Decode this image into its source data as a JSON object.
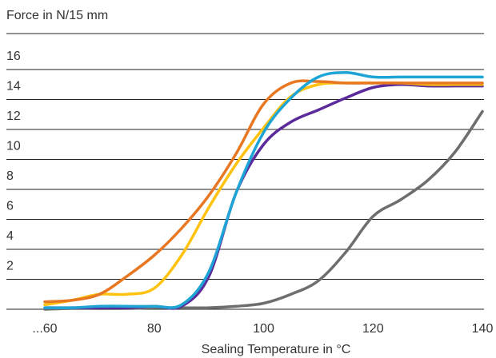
{
  "chart_data": {
    "type": "line",
    "y_label": "Force in N/15 mm",
    "x_label": "Sealing Temperature in °C",
    "x": [
      60,
      65,
      70,
      75,
      80,
      85,
      90,
      95,
      100,
      105,
      110,
      115,
      120,
      125,
      130,
      135,
      140
    ],
    "xlim": [
      60,
      140
    ],
    "xticks": [
      {
        "value": 60,
        "label": "...60"
      },
      80,
      100,
      120,
      140
    ],
    "ylim": [
      0,
      16
    ],
    "yticks": [
      2,
      4,
      6,
      8,
      10,
      12,
      14,
      16
    ],
    "grid": true,
    "series": [
      {
        "color": "#6d6e70",
        "values": [
          0,
          0.05,
          0.05,
          0.05,
          0.1,
          0.1,
          0.1,
          0.2,
          0.4,
          1.0,
          1.9,
          3.8,
          6.2,
          7.3,
          8.6,
          10.5,
          13.2
        ]
      },
      {
        "color": "#5b2a9b",
        "values": [
          0.1,
          0.1,
          0.1,
          0.1,
          0.2,
          0.2,
          2.2,
          7.8,
          11.0,
          12.5,
          13.3,
          14.1,
          14.8,
          15.0,
          14.9,
          14.9,
          14.9
        ]
      },
      {
        "color": "#ffc20e",
        "values": [
          0.3,
          0.6,
          1.0,
          1.0,
          1.4,
          3.6,
          6.8,
          9.7,
          12.1,
          14.2,
          15.0,
          15.1,
          15.1,
          15.1,
          15.0,
          15.0,
          15.0
        ]
      },
      {
        "color": "#e87722",
        "values": [
          0.5,
          0.6,
          1.0,
          2.2,
          3.6,
          5.4,
          7.6,
          10.4,
          13.7,
          15.1,
          15.2,
          15.1,
          15.1,
          15.1,
          15.1,
          15.1,
          15.1
        ]
      },
      {
        "color": "#1ea5d6",
        "values": [
          0.1,
          0.1,
          0.2,
          0.2,
          0.2,
          0.3,
          2.5,
          7.8,
          11.8,
          14.1,
          15.5,
          15.8,
          15.5,
          15.5,
          15.5,
          15.5,
          15.5
        ]
      }
    ]
  }
}
